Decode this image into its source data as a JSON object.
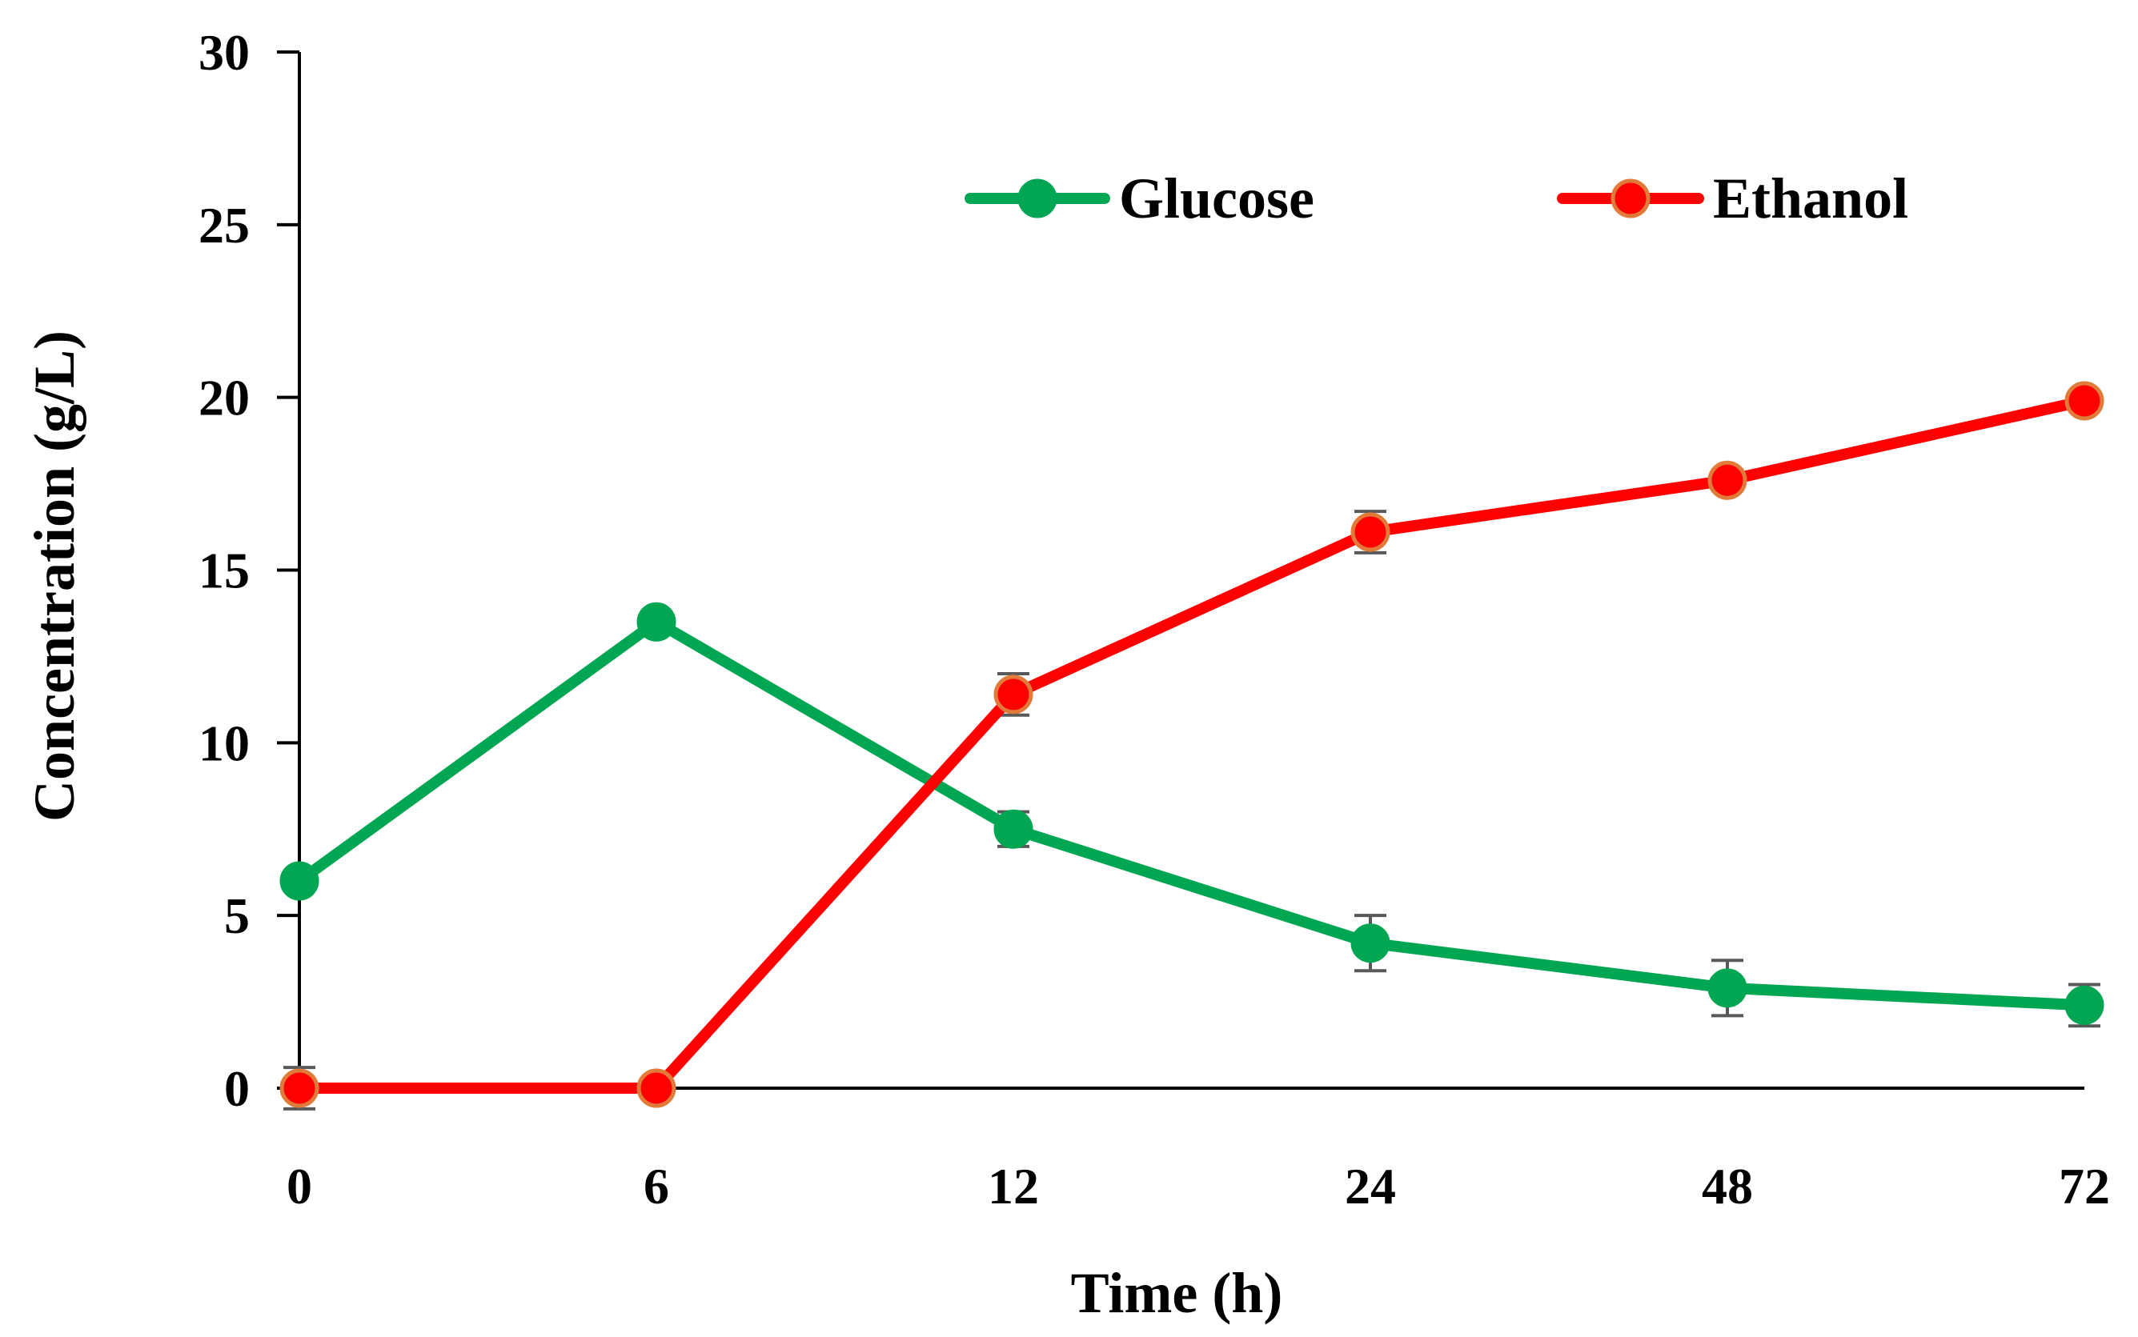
{
  "chart_data": {
    "type": "line",
    "title": "",
    "xlabel": "Time (h)",
    "ylabel": "Concentration (g/L)",
    "categories": [
      "0",
      "6",
      "12",
      "24",
      "48",
      "72"
    ],
    "ylim": [
      0,
      30
    ],
    "yticks": [
      "0",
      "5",
      "10",
      "15",
      "20",
      "25",
      "30"
    ],
    "grid": false,
    "legend_position": "top-right",
    "series": [
      {
        "name": "Glucose",
        "color": "#00a651",
        "marker_color": "#00a651",
        "marker_edge": "#00a651",
        "values": [
          6.0,
          13.5,
          7.5,
          4.2,
          2.9,
          2.4
        ],
        "errors": [
          0.2,
          0.2,
          0.5,
          0.8,
          0.8,
          0.6
        ]
      },
      {
        "name": "Ethanol",
        "color": "#ff0000",
        "marker_color": "#ff0000",
        "marker_edge": "#e07b39",
        "values": [
          0.0,
          0.0,
          11.4,
          16.1,
          17.6,
          19.9
        ],
        "errors": [
          0.6,
          0.0,
          0.6,
          0.6,
          0.3,
          0.2
        ]
      }
    ],
    "errorbar_color": "#595959"
  }
}
